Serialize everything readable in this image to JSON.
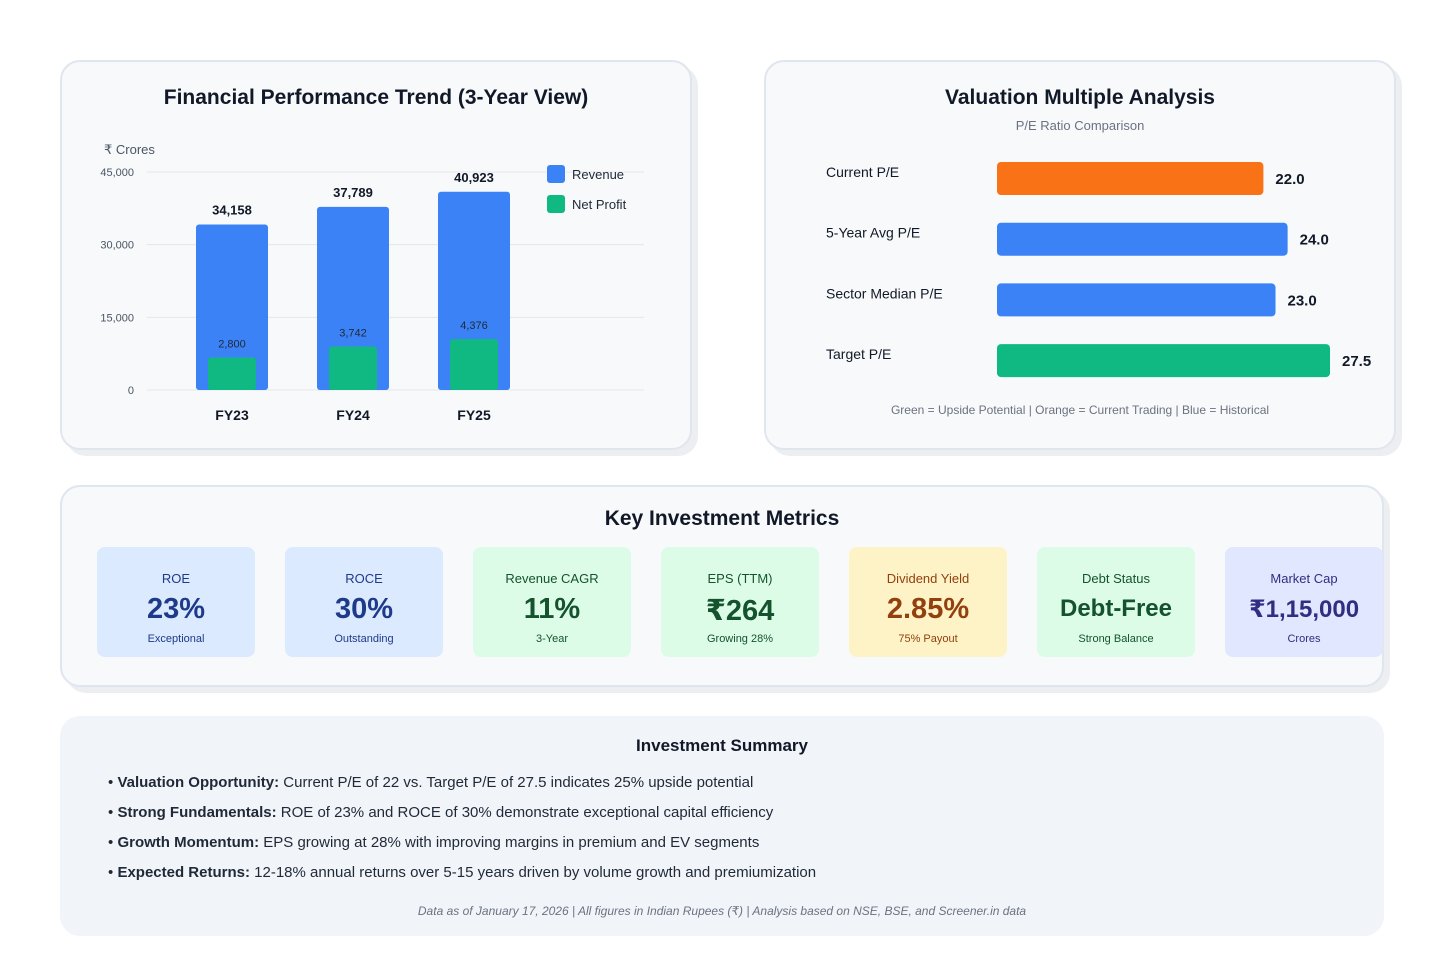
{
  "financial": {
    "title": "Financial Performance Trend (3-Year View)",
    "unit_label": "₹ Crores",
    "legend": [
      {
        "label": "Revenue",
        "color": "#3b82f6"
      },
      {
        "label": "Net Profit",
        "color": "#10b981"
      }
    ]
  },
  "valuation": {
    "title": "Valuation Multiple Analysis",
    "subtitle": "P/E Ratio Comparison",
    "note": "Green = Upside Potential | Orange = Current Trading | Blue = Historical"
  },
  "chart_data": [
    {
      "type": "bar",
      "title": "Financial Performance Trend (3-Year View)",
      "ylabel": "₹ Crores",
      "xlabel": "",
      "categories": [
        "FY23",
        "FY24",
        "FY25"
      ],
      "series": [
        {
          "name": "Revenue",
          "values": [
            34158,
            37789,
            40923
          ],
          "labels": [
            "34,158",
            "37,789",
            "40,923"
          ],
          "color": "#3b82f6"
        },
        {
          "name": "Net Profit",
          "values": [
            2800,
            3742,
            4376
          ],
          "labels": [
            "2,800",
            "3,742",
            "4,376"
          ],
          "color": "#10b981"
        }
      ],
      "ylim": [
        0,
        45000
      ],
      "yticks": [
        0,
        15000,
        30000,
        45000
      ],
      "ytick_labels": [
        "0",
        "15,000",
        "30,000",
        "45,000"
      ],
      "grid": true,
      "legend_position": "top-right"
    },
    {
      "type": "bar",
      "orientation": "horizontal",
      "title": "Valuation Multiple Analysis",
      "subtitle": "P/E Ratio Comparison",
      "categories": [
        "Current P/E",
        "5-Year Avg P/E",
        "Sector Median P/E",
        "Target P/E"
      ],
      "values": [
        22.0,
        24.0,
        23.0,
        27.5
      ],
      "value_labels": [
        "22.0",
        "24.0",
        "23.0",
        "27.5"
      ],
      "colors": [
        "#f97316",
        "#3b82f6",
        "#3b82f6",
        "#10b981"
      ],
      "xlim": [
        0,
        27.5
      ]
    }
  ],
  "metrics": {
    "title": "Key Investment Metrics",
    "items": [
      {
        "label": "ROE",
        "value": "23%",
        "note": "Exceptional"
      },
      {
        "label": "ROCE",
        "value": "30%",
        "note": "Outstanding"
      },
      {
        "label": "Revenue CAGR",
        "value": "11%",
        "note": "3-Year"
      },
      {
        "label": "EPS (TTM)",
        "value": "₹264",
        "note": "Growing 28%"
      },
      {
        "label": "Dividend Yield",
        "value": "2.85%",
        "note": "75% Payout"
      },
      {
        "label": "Debt Status",
        "value": "Debt-Free",
        "note": "Strong Balance"
      },
      {
        "label": "Market Cap",
        "value": "₹1,15,000",
        "note": "Crores"
      }
    ]
  },
  "summary": {
    "title": "Investment Summary",
    "items": [
      {
        "bold": "Valuation Opportunity:",
        "text": " Current P/E of 22 vs. Target P/E of 27.5 indicates 25% upside potential"
      },
      {
        "bold": "Strong Fundamentals:",
        "text": " ROE of 23% and ROCE of 30% demonstrate exceptional capital efficiency"
      },
      {
        "bold": "Growth Momentum:",
        "text": " EPS growing at 28% with improving margins in premium and EV segments"
      },
      {
        "bold": "Expected Returns:",
        "text": " 12-18% annual returns over 5-15 years driven by volume growth and premiumization"
      }
    ],
    "bullet": "•",
    "footer": "Data as of January 17, 2026 | All figures in Indian Rupees (₹) | Analysis based on NSE, BSE, and Screener.in data"
  }
}
